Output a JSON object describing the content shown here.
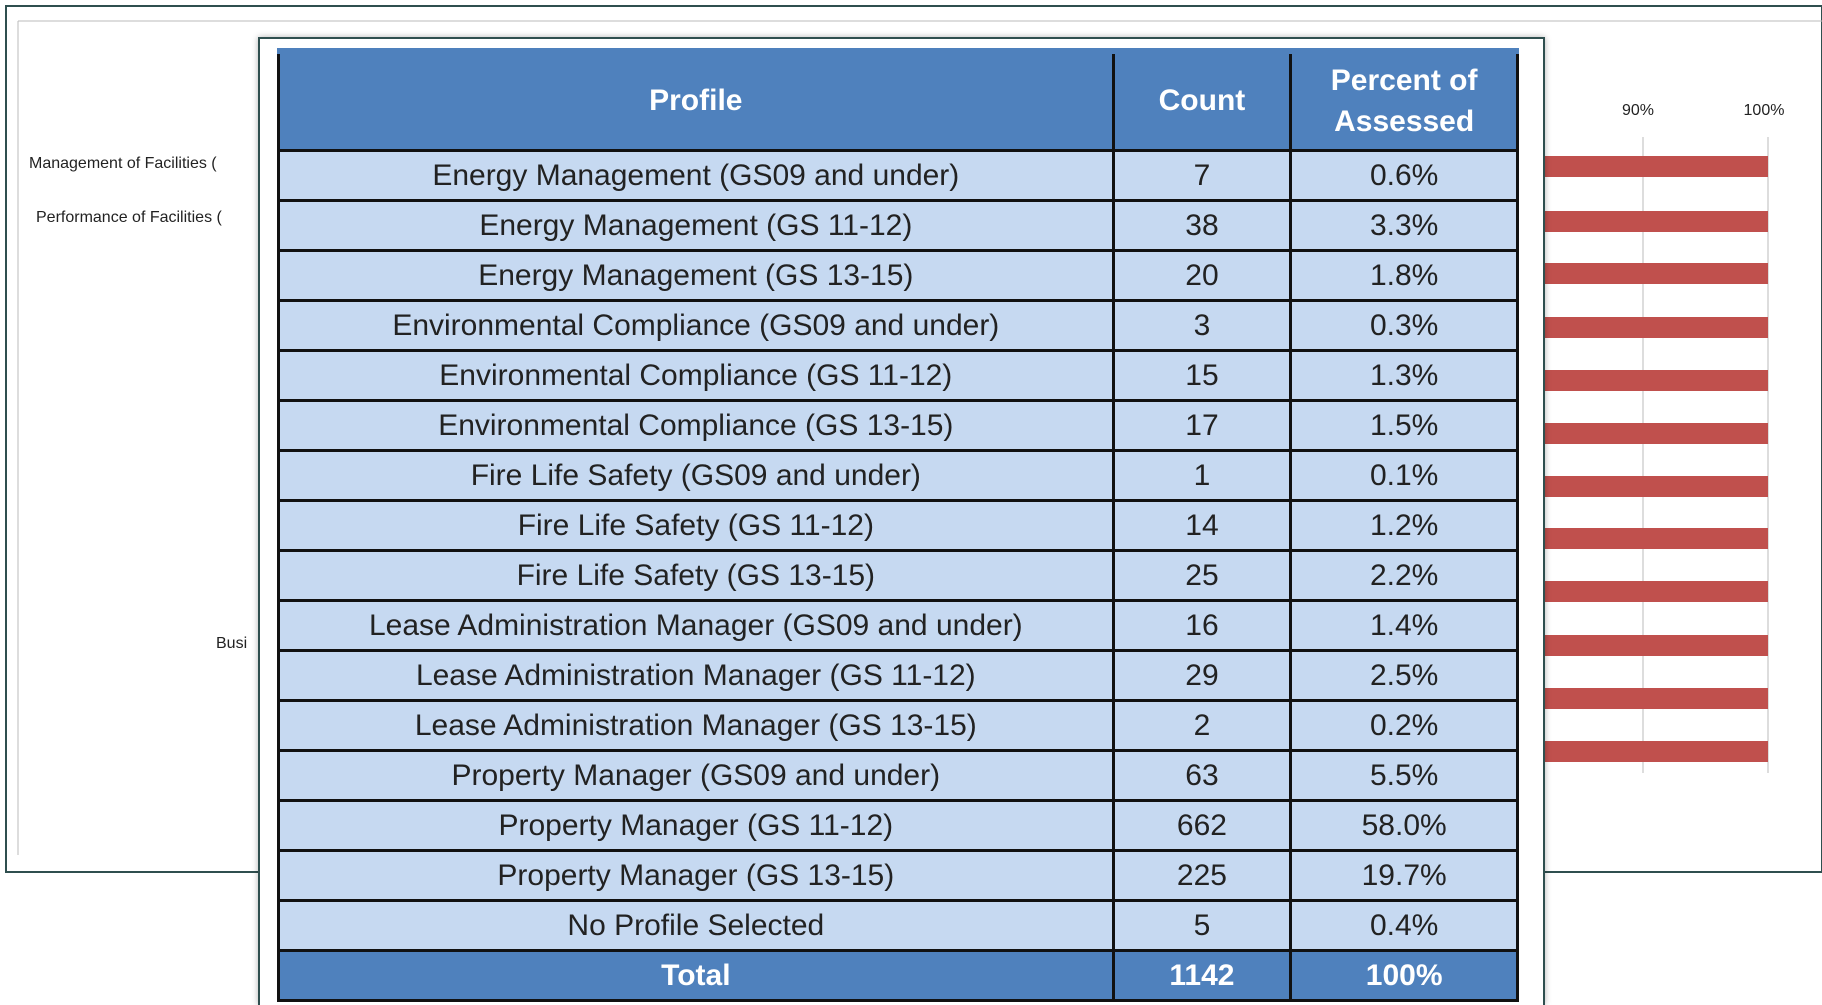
{
  "background": {
    "labels": [
      "Management of Facilities (",
      "Performance of Facilities (",
      "Busi"
    ],
    "ticks": [
      "90%",
      "100%"
    ]
  },
  "table": {
    "header": [
      "Profile",
      "Count",
      "Percent of Assessed"
    ],
    "rows": [
      [
        "Energy Management (GS09 and under)",
        7,
        "0.6%"
      ],
      [
        "Energy Management (GS 11-12)",
        38,
        "3.3%"
      ],
      [
        "Energy Management (GS 13-15)",
        20,
        "1.8%"
      ],
      [
        "Environmental Compliance (GS09 and under)",
        3,
        "0.3%"
      ],
      [
        "Environmental Compliance (GS 11-12)",
        15,
        "1.3%"
      ],
      [
        "Environmental Compliance (GS 13-15)",
        17,
        "1.5%"
      ],
      [
        "Fire Life Safety (GS09 and under)",
        1,
        "0.1%"
      ],
      [
        "Fire Life Safety (GS 11-12)",
        14,
        "1.2%"
      ],
      [
        "Fire Life Safety (GS 13-15)",
        25,
        "2.2%"
      ],
      [
        "Lease Administration Manager (GS09 and under)",
        16,
        "1.4%"
      ],
      [
        "Lease Administration Manager (GS 11-12)",
        29,
        "2.5%"
      ],
      [
        "Lease Administration Manager (GS 13-15)",
        2,
        "0.2%"
      ],
      [
        "Property Manager (GS09 and under)",
        63,
        "5.5%"
      ],
      [
        "Property Manager (GS 11-12)",
        662,
        "58.0%"
      ],
      [
        "Property Manager (GS 13-15)",
        225,
        "19.7%"
      ],
      [
        "No Profile Selected",
        5,
        "0.4%"
      ]
    ],
    "total": [
      "Total",
      1142,
      "100%"
    ]
  }
}
